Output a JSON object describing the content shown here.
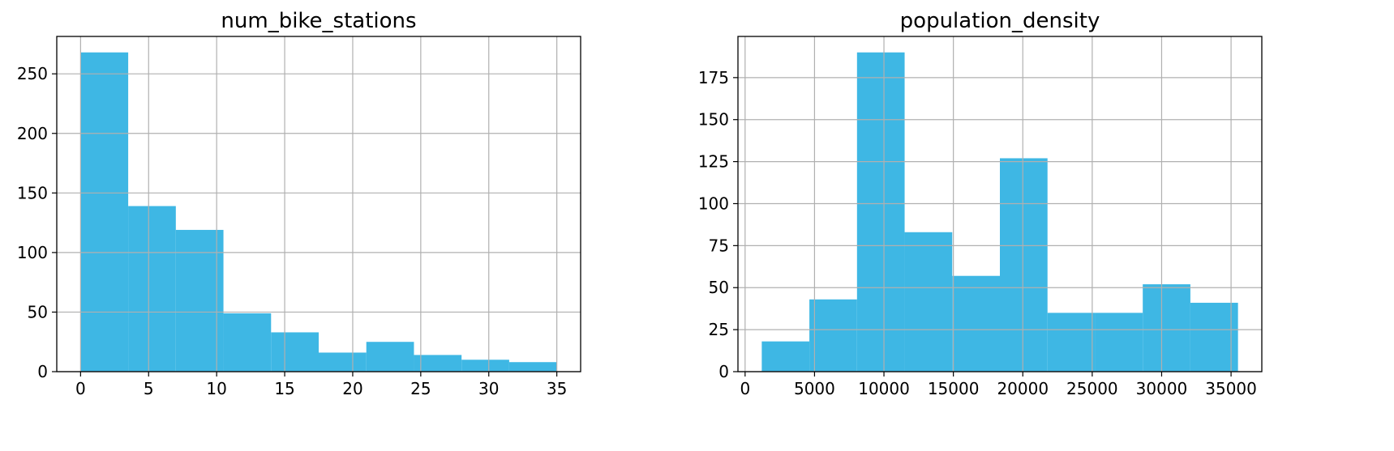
{
  "chart_data": [
    {
      "type": "bar",
      "title": "num_bike_stations",
      "xlabel": "",
      "ylabel": "",
      "bin_edges": [
        0,
        3.5,
        7,
        10.5,
        14,
        17.5,
        21,
        24.5,
        28,
        31.5,
        35
      ],
      "values": [
        268,
        139,
        119,
        49,
        33,
        16,
        25,
        14,
        10,
        8
      ],
      "xlim": [
        -1.75,
        36.75
      ],
      "ylim": [
        0,
        281.4
      ],
      "xticks": [
        0,
        5,
        10,
        15,
        20,
        25,
        30,
        35
      ],
      "yticks": [
        0,
        50,
        100,
        150,
        200,
        250
      ],
      "grid": true,
      "bar_color": "#3eb7e4"
    },
    {
      "type": "bar",
      "title": "population_density",
      "xlabel": "",
      "ylabel": "",
      "bin_edges": [
        1200,
        4630,
        8060,
        11490,
        14920,
        18350,
        21780,
        25210,
        28640,
        32070,
        35500
      ],
      "values": [
        18,
        43,
        190,
        83,
        57,
        127,
        35,
        35,
        52,
        41
      ],
      "xlim": [
        -515,
        37215
      ],
      "ylim": [
        0,
        199.5
      ],
      "xticks": [
        0,
        5000,
        10000,
        15000,
        20000,
        25000,
        30000,
        35000
      ],
      "yticks": [
        0,
        25,
        50,
        75,
        100,
        125,
        150,
        175
      ],
      "grid": true,
      "bar_color": "#3eb7e4"
    }
  ]
}
